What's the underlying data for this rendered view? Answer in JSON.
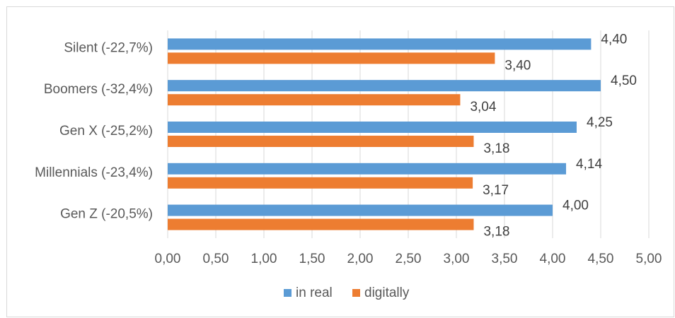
{
  "chart_data": {
    "type": "bar",
    "orientation": "horizontal",
    "categories": [
      "Silent (-22,7%)",
      "Boomers (-32,4%)",
      "Gen X (-25,2%)",
      "Millennials (-23,4%)",
      "Gen Z (-20,5%)"
    ],
    "series": [
      {
        "name": "in real",
        "color": "#5b9bd5",
        "values": [
          4.4,
          4.5,
          4.25,
          4.14,
          4.0
        ],
        "labels": [
          "4,40",
          "4,50",
          "4,25",
          "4,14",
          "4,00"
        ]
      },
      {
        "name": "digitally",
        "color": "#ed7d31",
        "values": [
          3.4,
          3.04,
          3.18,
          3.17,
          3.18
        ],
        "labels": [
          "3,40",
          "3,04",
          "3,18",
          "3,17",
          "3,18"
        ]
      }
    ],
    "xlim": [
      0,
      5
    ],
    "xticks": [
      0,
      0.5,
      1,
      1.5,
      2,
      2.5,
      3,
      3.5,
      4,
      4.5,
      5
    ],
    "xtick_labels": [
      "0,00",
      "0,50",
      "1,00",
      "1,50",
      "2,00",
      "2,50",
      "3,00",
      "3,50",
      "4,00",
      "4,50",
      "5,00"
    ],
    "grid": true,
    "legend_position": "bottom"
  }
}
